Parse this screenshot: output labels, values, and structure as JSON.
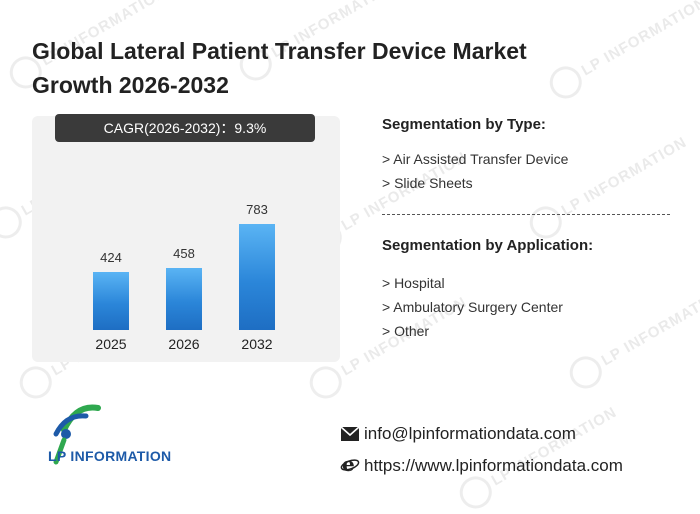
{
  "title": "Global Lateral Patient Transfer Device Market Growth 2026-2032",
  "cagr_label": "CAGR(2026-2032)：9.3%",
  "chart_data": {
    "type": "bar",
    "categories": [
      "2025",
      "2026",
      "2032"
    ],
    "values": [
      424,
      458,
      783
    ],
    "value_labels": [
      "424",
      "458",
      "783"
    ],
    "title": "",
    "xlabel": "",
    "ylabel": "",
    "ylim": [
      0,
      900
    ]
  },
  "segmentation": {
    "type_heading": "Segmentation by Type:",
    "types": [
      "> Air Assisted Transfer Device",
      "> Slide Sheets"
    ],
    "application_heading": "Segmentation by Application:",
    "applications": [
      "> Hospital",
      "> Ambulatory Surgery Center",
      "> Other"
    ]
  },
  "brand": {
    "name": "LP INFORMATION",
    "color": "#1d5aa8",
    "accent": "#2fa84f"
  },
  "watermark": "LP INFORMATION",
  "contact": {
    "email": "info@lpinformationdata.com",
    "website": "https://www.lpinformationdata.com",
    "email_icon": "mail-icon",
    "web_icon": "browser-e-icon"
  },
  "colors": {
    "bar": "#2b86d9",
    "cagr_bg": "#3a3a3a",
    "panel": "#f2f2f2"
  }
}
